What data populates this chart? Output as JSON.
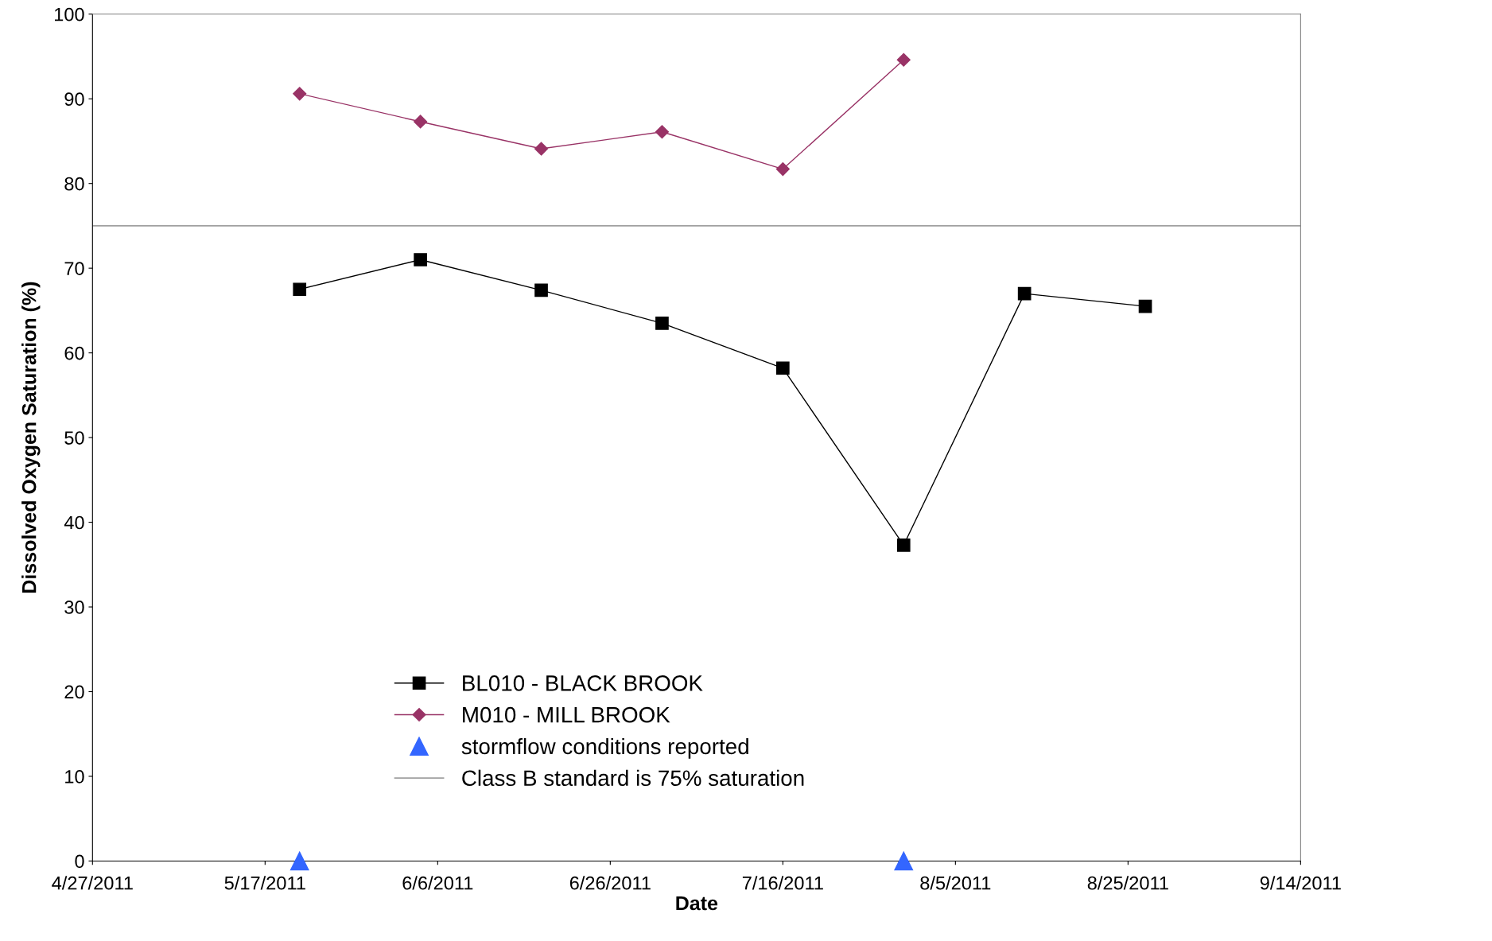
{
  "chart_data": {
    "type": "line",
    "xlabel": "Date",
    "ylabel": "Dissolved Oxygen Saturation (%)",
    "x": [
      "2011-05-21",
      "2011-06-04",
      "2011-06-18",
      "2011-07-02",
      "2011-07-16",
      "2011-07-30",
      "2011-08-13",
      "2011-08-27"
    ],
    "series": [
      {
        "name": "BL010 - BLACK BROOK",
        "color": "#000000",
        "marker": "square",
        "values": [
          67.5,
          71.0,
          67.4,
          63.5,
          58.2,
          37.3,
          67.0,
          65.5
        ]
      },
      {
        "name": "M010 - MILL BROOK",
        "color": "#993366",
        "marker": "diamond",
        "values": [
          90.6,
          87.3,
          84.1,
          86.1,
          81.7,
          94.6,
          null,
          null
        ]
      },
      {
        "name": "stormflow conditions reported",
        "type": "scatter",
        "color": "#3366ff",
        "marker": "triangle",
        "x": [
          "2011-05-21",
          "2011-07-30"
        ],
        "values": [
          0,
          0
        ]
      }
    ],
    "ref_lines": [
      {
        "axis": "y",
        "value": 75,
        "label": "Class B standard is 75% saturation",
        "color": "#a0a0a0",
        "line_style": "solid"
      }
    ],
    "xlim": [
      "2011-04-27",
      "2011-09-14"
    ],
    "xticks": [
      {
        "value": "2011-04-27",
        "label": "4/27/2011"
      },
      {
        "value": "2011-05-17",
        "label": "5/17/2011"
      },
      {
        "value": "2011-06-06",
        "label": "6/6/2011"
      },
      {
        "value": "2011-06-26",
        "label": "6/26/2011"
      },
      {
        "value": "2011-07-16",
        "label": "7/16/2011"
      },
      {
        "value": "2011-08-05",
        "label": "8/5/2011"
      },
      {
        "value": "2011-08-25",
        "label": "8/25/2011"
      },
      {
        "value": "2011-09-14",
        "label": "9/14/2011"
      }
    ],
    "ylim": [
      0,
      100
    ],
    "yticks": [
      0,
      10,
      20,
      30,
      40,
      50,
      60,
      70,
      80,
      90,
      100
    ],
    "grid": false,
    "legend": "bottom"
  }
}
